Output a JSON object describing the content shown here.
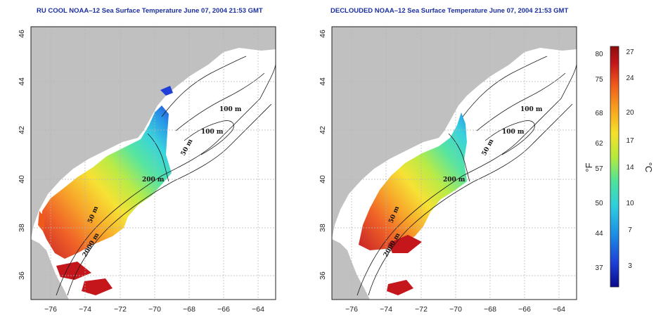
{
  "panels": [
    {
      "id": "left",
      "title": "RU COOL NOAA–12 Sea Surface Temperature June 07, 2004 21:53 GMT",
      "contour_labels": [
        "100 m",
        "100 m",
        "50 m",
        "200 m",
        "50 m",
        "2000 m"
      ]
    },
    {
      "id": "right",
      "title": "DECLOUDED NOAA–12 Sea Surface Temperature June 07, 2004 21:53 GMT",
      "contour_labels": [
        "100 m",
        "100 m",
        "50 m",
        "200 m",
        "50 m",
        "2000 m"
      ]
    }
  ],
  "axes": {
    "x_ticks": [
      "−76",
      "−74",
      "−72",
      "−70",
      "−68",
      "−66",
      "−64"
    ],
    "y_ticks": [
      "36",
      "38",
      "40",
      "42",
      "44",
      "46"
    ],
    "lon_range": [
      -77,
      -63
    ],
    "lat_range": [
      35,
      46
    ],
    "grid": true
  },
  "colorbar": {
    "fahrenheit_label": "°F",
    "celsius_label": "°C",
    "fahrenheit_ticks": [
      "80",
      "75",
      "68",
      "62",
      "57",
      "50",
      "44",
      "37"
    ],
    "celsius_ticks": [
      "27",
      "24",
      "20",
      "17",
      "14",
      "10",
      "7",
      "3"
    ],
    "range_c": [
      0,
      28
    ],
    "colors": [
      "#0a0a8c",
      "#1f3fd6",
      "#1c8fe6",
      "#2ed0dc",
      "#4fe39a",
      "#b6ea3c",
      "#f6e02a",
      "#f7a21f",
      "#ef5a1c",
      "#c4161b",
      "#8c0d0d"
    ]
  },
  "colors": {
    "land": "#c0c0c0",
    "ocean": "#ffffff",
    "grid": "#b5b5b5",
    "title": "#1b2fa0"
  }
}
